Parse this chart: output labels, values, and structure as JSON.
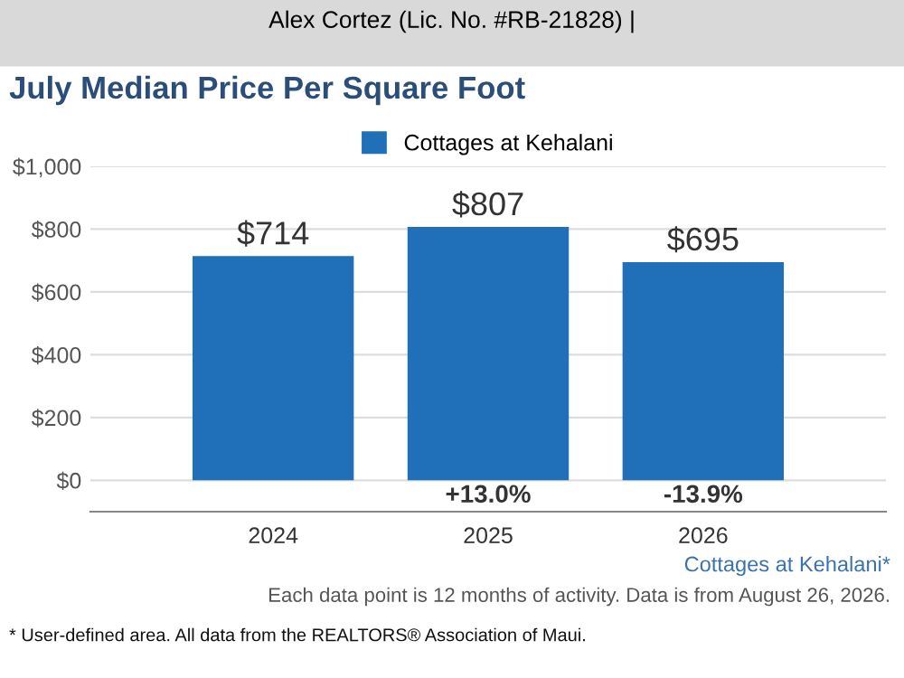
{
  "chart_data": {
    "type": "bar",
    "title": "July Median Price Per Square Foot",
    "subtitle": "Alex Cortez (Lic. No. #RB-21828) |",
    "categories": [
      "2024",
      "2025",
      "2026"
    ],
    "series": [
      {
        "name": "Cottages at Kehalani",
        "color": "#1f70b9",
        "values": [
          714,
          807,
          695
        ]
      }
    ],
    "value_labels": [
      "$714",
      "$807",
      "$695"
    ],
    "ylim": [
      -100,
      1000
    ],
    "yticks": [
      {
        "value": 0,
        "label": "$0"
      },
      {
        "value": 200,
        "label": "$200"
      },
      {
        "value": 400,
        "label": "$400"
      },
      {
        "value": 600,
        "label": "$600"
      },
      {
        "value": 800,
        "label": "$800"
      },
      {
        "value": 1000,
        "label": "$1,000"
      }
    ],
    "grid": "y",
    "legend": "top",
    "annotations": [
      "+13.0%",
      "-13.9%",
      "Cottages at Kehalani*",
      "Each data point is 12 months of activity. Data is from August 26, 2026.",
      "* User-defined area. All data from the REALTORS® Association of Maui."
    ]
  }
}
